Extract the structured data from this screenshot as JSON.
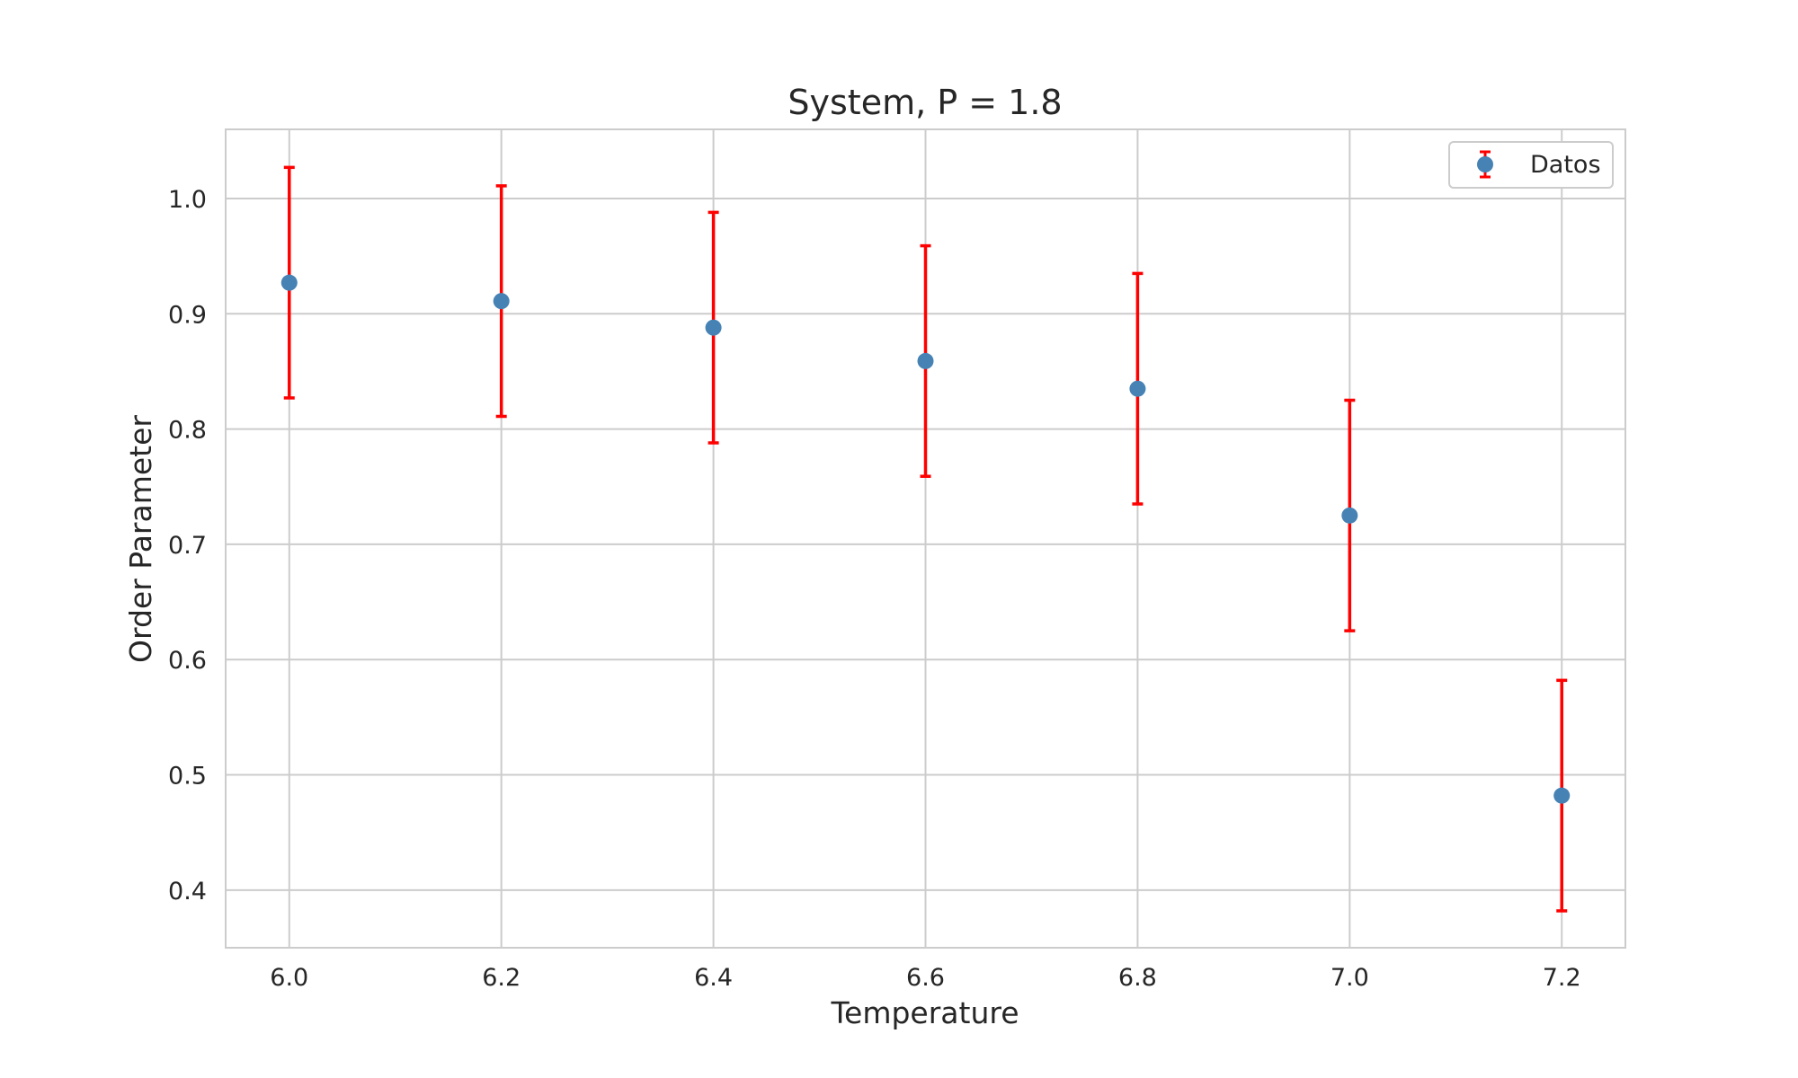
{
  "chart_data": {
    "type": "scatter",
    "title": "System, P = 1.8",
    "xlabel": "Temperature",
    "ylabel": "Order Parameter",
    "xlim": [
      5.94,
      7.26
    ],
    "ylim": [
      0.35,
      1.06
    ],
    "xticks": [
      6.0,
      6.2,
      6.4,
      6.6,
      6.8,
      7.0,
      7.2
    ],
    "xtick_labels": [
      "6.0",
      "6.2",
      "6.4",
      "6.6",
      "6.8",
      "7.0",
      "7.2"
    ],
    "yticks": [
      0.4,
      0.5,
      0.6,
      0.7,
      0.8,
      0.9,
      1.0
    ],
    "ytick_labels": [
      "0.4",
      "0.5",
      "0.6",
      "0.7",
      "0.8",
      "0.9",
      "1.0"
    ],
    "grid": true,
    "legend_position": "top-right",
    "series": [
      {
        "name": "Datos",
        "marker_color": "#4682b4",
        "error_color": "#ff0000",
        "x": [
          6.0,
          6.2,
          6.4,
          6.6,
          6.8,
          7.0,
          7.2
        ],
        "y": [
          0.927,
          0.911,
          0.888,
          0.859,
          0.835,
          0.725,
          0.482
        ],
        "yerr": [
          0.1,
          0.1,
          0.1,
          0.1,
          0.1,
          0.1,
          0.1
        ]
      }
    ]
  }
}
